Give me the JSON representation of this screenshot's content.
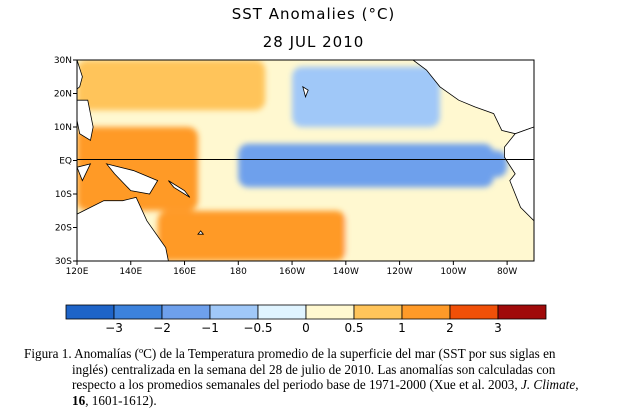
{
  "chart_data": {
    "type": "heatmap",
    "title": "SST Anomalies (°C)",
    "subtitle": "28 JUL 2010",
    "x_ticks": [
      "120E",
      "140E",
      "160E",
      "180",
      "160W",
      "140W",
      "120W",
      "100W",
      "80W"
    ],
    "y_ticks": [
      "30N",
      "20N",
      "10N",
      "EQ",
      "10S",
      "20S",
      "30S"
    ],
    "lon_range": [
      120,
      290
    ],
    "lat_range": [
      -30,
      30
    ],
    "colorbar": {
      "tick_labels": [
        "−3",
        "−2",
        "−1",
        "−0.5",
        "0",
        "0.5",
        "1",
        "2",
        "3"
      ],
      "bins": [
        {
          "min": -4,
          "max": -3,
          "color": "#1e64c8"
        },
        {
          "min": -3,
          "max": -2,
          "color": "#3c82dc"
        },
        {
          "min": -2,
          "max": -1,
          "color": "#6ea0ec"
        },
        {
          "min": -1,
          "max": -0.5,
          "color": "#a0c8f8"
        },
        {
          "min": -0.5,
          "max": 0,
          "color": "#e0f4ff"
        },
        {
          "min": 0,
          "max": 0.5,
          "color": "#fff8d0"
        },
        {
          "min": 0.5,
          "max": 1,
          "color": "#ffc45a"
        },
        {
          "min": 1,
          "max": 2,
          "color": "#ff9a28"
        },
        {
          "min": 2,
          "max": 3,
          "color": "#f05008"
        },
        {
          "min": 3,
          "max": 4,
          "color": "#a00a0a"
        }
      ]
    },
    "anomaly_regions": [
      {
        "region": "eastern equatorial Pacific cold tongue",
        "lon": [
          180,
          275
        ],
        "lat": [
          -8,
          5
        ],
        "value": -1.2
      },
      {
        "region": "far eastern equatorial Pacific",
        "lon": [
          250,
          280
        ],
        "lat": [
          -5,
          3
        ],
        "value": -1.8
      },
      {
        "region": "central north Pacific",
        "lon": [
          200,
          255
        ],
        "lat": [
          10,
          28
        ],
        "value": -0.7
      },
      {
        "region": "western Pacific warm pool",
        "lon": [
          120,
          165
        ],
        "lat": [
          -15,
          10
        ],
        "value": 1.3
      },
      {
        "region": "northwest Pacific",
        "lon": [
          120,
          190
        ],
        "lat": [
          15,
          30
        ],
        "value": 0.9
      },
      {
        "region": "southwest Pacific",
        "lon": [
          150,
          220
        ],
        "lat": [
          -30,
          -15
        ],
        "value": 1.1
      },
      {
        "region": "southeast Pacific",
        "lon": [
          220,
          290
        ],
        "lat": [
          -30,
          -15
        ],
        "value": 0.4
      }
    ]
  },
  "caption": {
    "lead": "Figura 1. Anomalías (ºC) de la Temperatura promedio  de la superficie del mar (SST por sus siglas en",
    "line2": "inglés)  centralizada en la semana del 28 de julio  de 2010.  Las anomalías son calculadas con",
    "line3a": "respecto a los promedios semanales del periodo base de 1971-2000  (Xue et al. 2003, ",
    "journal": "J. Climate",
    "line3b": ",",
    "volume": "16",
    "line4": ", 1601-1612)."
  }
}
